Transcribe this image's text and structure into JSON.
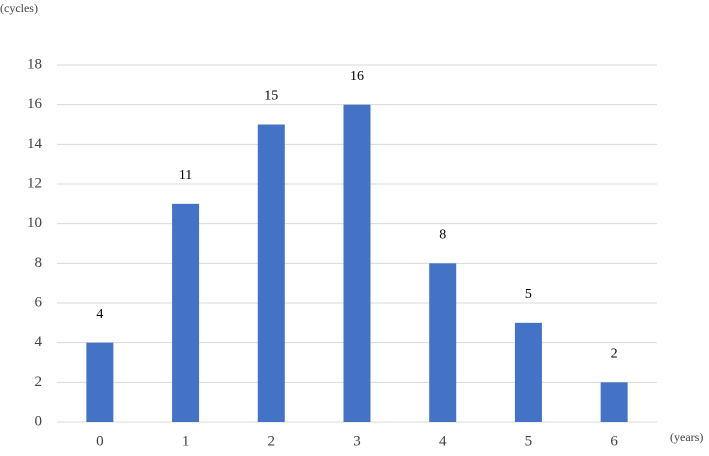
{
  "chart_data": {
    "type": "bar",
    "y_label": "(cycles)",
    "x_label": "(years)",
    "categories": [
      "0",
      "1",
      "2",
      "3",
      "4",
      "5",
      "6"
    ],
    "values": [
      4,
      11,
      15,
      16,
      8,
      5,
      2
    ],
    "color": "#4472c4",
    "ylim": [
      0,
      18
    ],
    "yticks": [
      0,
      2,
      4,
      6,
      8,
      10,
      12,
      14,
      16,
      18
    ],
    "grid": true,
    "data_labels": true
  }
}
